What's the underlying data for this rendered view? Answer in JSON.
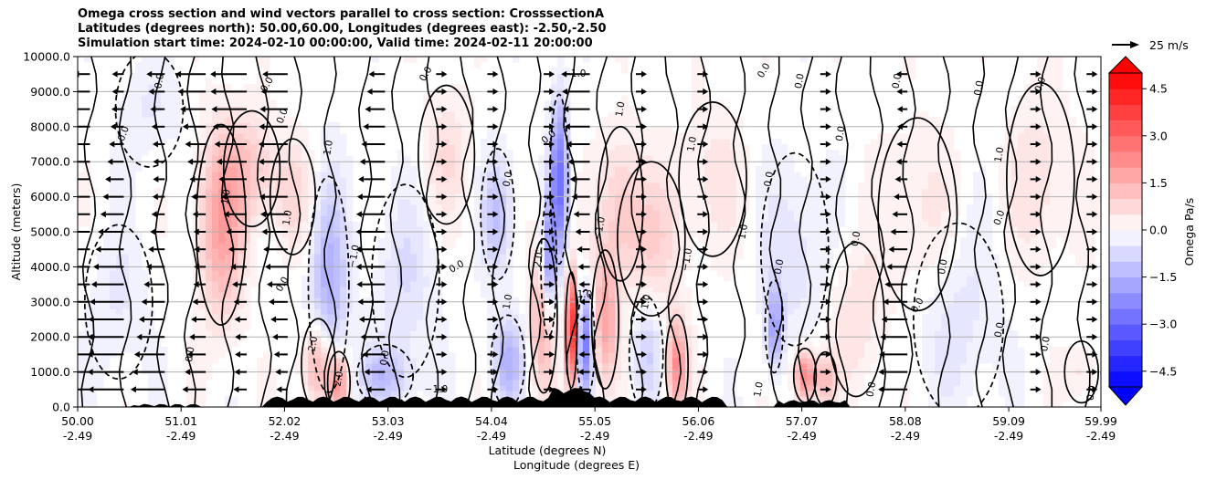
{
  "chart_data": {
    "type": "heatmap",
    "title_lines": [
      "Omega cross section and wind vectors parallel to cross section: CrosssectionA",
      "Latitudes (degrees north): 50.00,60.00, Longitudes (degrees east): -2.50,-2.50",
      "Simulation start time: 2024-02-10 00:00:00, Valid time: 2024-02-11 20:00:00"
    ],
    "xlabel_lines": [
      "Latitude (degrees N)",
      "Longitude (degrees E)"
    ],
    "ylabel": "Altitude (meters)",
    "colorbar_label": "Omega Pa/s",
    "quiver_key_label": "25 m/s",
    "xlim": [
      50.0,
      59.99
    ],
    "ylim": [
      0,
      10000
    ],
    "x_ticks": [
      {
        "lat": "50.00",
        "lon": "-2.49",
        "value": 50.0
      },
      {
        "lat": "51.01",
        "lon": "-2.49",
        "value": 51.01
      },
      {
        "lat": "52.02",
        "lon": "-2.49",
        "value": 52.02
      },
      {
        "lat": "53.03",
        "lon": "-2.49",
        "value": 53.03
      },
      {
        "lat": "54.04",
        "lon": "-2.49",
        "value": 54.04
      },
      {
        "lat": "55.05",
        "lon": "-2.49",
        "value": 55.05
      },
      {
        "lat": "56.06",
        "lon": "-2.49",
        "value": 56.06
      },
      {
        "lat": "57.07",
        "lon": "-2.49",
        "value": 57.07
      },
      {
        "lat": "58.08",
        "lon": "-2.49",
        "value": 58.08
      },
      {
        "lat": "59.09",
        "lon": "-2.49",
        "value": 59.09
      },
      {
        "lat": "59.99",
        "lon": "-2.49",
        "value": 59.99
      }
    ],
    "y_ticks": [
      {
        "label": "0.0",
        "value": 0
      },
      {
        "label": "1000.0",
        "value": 1000
      },
      {
        "label": "2000.0",
        "value": 2000
      },
      {
        "label": "3000.0",
        "value": 3000
      },
      {
        "label": "4000.0",
        "value": 4000
      },
      {
        "label": "5000.0",
        "value": 5000
      },
      {
        "label": "6000.0",
        "value": 6000
      },
      {
        "label": "7000.0",
        "value": 7000
      },
      {
        "label": "8000.0",
        "value": 8000
      },
      {
        "label": "9000.0",
        "value": 9000
      },
      {
        "label": "10000.0",
        "value": 10000
      }
    ],
    "colorbar_ticks": [
      {
        "label": "4.5",
        "value": 4.5
      },
      {
        "label": "3.0",
        "value": 3.0
      },
      {
        "label": "1.5",
        "value": 1.5
      },
      {
        "label": "0.0",
        "value": 0.0
      },
      {
        "label": "−1.5",
        "value": -1.5
      },
      {
        "label": "−3.0",
        "value": -3.0
      },
      {
        "label": "−4.5",
        "value": -4.5
      }
    ],
    "colorbar_range": [
      -5.0,
      5.0
    ],
    "colorbar_extend": "both",
    "omega_features": [
      {
        "lat": 51.4,
        "alt": 5200,
        "omega": 1.8,
        "wlat": 0.22,
        "walt": 2600
      },
      {
        "lat": 51.7,
        "alt": 6800,
        "omega": 1.0,
        "wlat": 0.25,
        "walt": 1500
      },
      {
        "lat": 52.1,
        "alt": 6000,
        "omega": 0.7,
        "wlat": 0.2,
        "walt": 1500
      },
      {
        "lat": 52.45,
        "alt": 3500,
        "omega": -1.5,
        "wlat": 0.18,
        "walt": 2800
      },
      {
        "lat": 52.35,
        "alt": 1200,
        "omega": 1.8,
        "wlat": 0.15,
        "walt": 1200
      },
      {
        "lat": 52.55,
        "alt": 700,
        "omega": 2.0,
        "wlat": 0.1,
        "walt": 800
      },
      {
        "lat": 53.0,
        "alt": 900,
        "omega": -1.2,
        "wlat": 0.25,
        "walt": 800
      },
      {
        "lat": 53.2,
        "alt": 3600,
        "omega": -0.6,
        "wlat": 0.3,
        "walt": 2500
      },
      {
        "lat": 53.6,
        "alt": 7200,
        "omega": 0.6,
        "wlat": 0.25,
        "walt": 1800
      },
      {
        "lat": 54.1,
        "alt": 5500,
        "omega": -1.2,
        "wlat": 0.15,
        "walt": 1700
      },
      {
        "lat": 54.2,
        "alt": 1300,
        "omega": -1.5,
        "wlat": 0.15,
        "walt": 1200
      },
      {
        "lat": 54.55,
        "alt": 2600,
        "omega": 1.8,
        "wlat": 0.12,
        "walt": 2000
      },
      {
        "lat": 54.7,
        "alt": 6500,
        "omega": -2.8,
        "wlat": 0.08,
        "walt": 2200
      },
      {
        "lat": 54.6,
        "alt": 4000,
        "omega": -2.4,
        "wlat": 0.07,
        "walt": 1800
      },
      {
        "lat": 54.82,
        "alt": 2200,
        "omega": 4.8,
        "wlat": 0.05,
        "walt": 1500
      },
      {
        "lat": 54.96,
        "alt": 1800,
        "omega": -2.5,
        "wlat": 0.08,
        "walt": 1400
      },
      {
        "lat": 55.15,
        "alt": 2500,
        "omega": 1.8,
        "wlat": 0.12,
        "walt": 1800
      },
      {
        "lat": 55.3,
        "alt": 5800,
        "omega": 0.9,
        "wlat": 0.2,
        "walt": 2000
      },
      {
        "lat": 55.55,
        "alt": 1500,
        "omega": -0.9,
        "wlat": 0.15,
        "walt": 1500
      },
      {
        "lat": 55.85,
        "alt": 1200,
        "omega": 2.2,
        "wlat": 0.1,
        "walt": 1300
      },
      {
        "lat": 55.6,
        "alt": 4800,
        "omega": 0.8,
        "wlat": 0.3,
        "walt": 2000
      },
      {
        "lat": 56.2,
        "alt": 6500,
        "omega": 0.5,
        "wlat": 0.3,
        "walt": 2000
      },
      {
        "lat": 56.8,
        "alt": 2300,
        "omega": -1.8,
        "wlat": 0.08,
        "walt": 1200
      },
      {
        "lat": 57.1,
        "alt": 900,
        "omega": 2.5,
        "wlat": 0.1,
        "walt": 700
      },
      {
        "lat": 57.3,
        "alt": 800,
        "omega": 1.2,
        "wlat": 0.1,
        "walt": 700
      },
      {
        "lat": 57.0,
        "alt": 4500,
        "omega": -0.6,
        "wlat": 0.3,
        "walt": 2500
      },
      {
        "lat": 57.6,
        "alt": 2500,
        "omega": 0.6,
        "wlat": 0.25,
        "walt": 2000
      },
      {
        "lat": 58.2,
        "alt": 5500,
        "omega": 0.5,
        "wlat": 0.35,
        "walt": 2500
      },
      {
        "lat": 58.6,
        "alt": 2500,
        "omega": -0.5,
        "wlat": 0.4,
        "walt": 2500
      },
      {
        "lat": 59.4,
        "alt": 6500,
        "omega": 0.6,
        "wlat": 0.3,
        "walt": 2500
      },
      {
        "lat": 59.8,
        "alt": 1000,
        "omega": 0.5,
        "wlat": 0.15,
        "walt": 800
      },
      {
        "lat": 50.7,
        "alt": 8500,
        "omega": -0.4,
        "wlat": 0.3,
        "walt": 1500
      },
      {
        "lat": 50.4,
        "alt": 3000,
        "omega": -0.4,
        "wlat": 0.3,
        "walt": 2000
      }
    ],
    "contour_labels": [
      {
        "text": "0.0",
        "lat": 50.45,
        "alt": 7800,
        "angle": -70
      },
      {
        "text": "0.0",
        "lat": 50.8,
        "alt": 9300,
        "angle": -80
      },
      {
        "text": "0.0",
        "lat": 51.1,
        "alt": 1500,
        "angle": -80
      },
      {
        "text": "1.0",
        "lat": 51.45,
        "alt": 6000,
        "angle": -80
      },
      {
        "text": "0.0",
        "lat": 51.85,
        "alt": 9200,
        "angle": -60
      },
      {
        "text": "0.0",
        "lat": 52.0,
        "alt": 8300,
        "angle": -70
      },
      {
        "text": "1.0",
        "lat": 52.05,
        "alt": 5400,
        "angle": -80
      },
      {
        "text": "2.0",
        "lat": 52.3,
        "alt": 1800,
        "angle": -80
      },
      {
        "text": "1.0",
        "lat": 52.45,
        "alt": 7400,
        "angle": -80
      },
      {
        "text": "0.0",
        "lat": 52.0,
        "alt": 3500,
        "angle": -60
      },
      {
        "text": "−1.0",
        "lat": 52.7,
        "alt": 4300,
        "angle": -80
      },
      {
        "text": "2.0",
        "lat": 52.55,
        "alt": 800,
        "angle": -80
      },
      {
        "text": "0.0",
        "lat": 53.0,
        "alt": 1400,
        "angle": -80
      },
      {
        "text": "0.0",
        "lat": 53.4,
        "alt": 9500,
        "angle": -60
      },
      {
        "text": "−1.0",
        "lat": 53.5,
        "alt": 500,
        "angle": 0
      },
      {
        "text": "0.0",
        "lat": 53.7,
        "alt": 4000,
        "angle": -30
      },
      {
        "text": "0.0",
        "lat": 54.2,
        "alt": 6500,
        "angle": -80
      },
      {
        "text": "1.0",
        "lat": 54.2,
        "alt": 3000,
        "angle": -80
      },
      {
        "text": "2.0",
        "lat": 54.5,
        "alt": 4200,
        "angle": -80
      },
      {
        "text": "0.0",
        "lat": 54.6,
        "alt": 7700,
        "angle": -40
      },
      {
        "text": "−1.0",
        "lat": 54.85,
        "alt": 9500,
        "angle": 0
      },
      {
        "text": "1.0",
        "lat": 54.95,
        "alt": 3200,
        "angle": 0
      },
      {
        "text": "1.0",
        "lat": 55.3,
        "alt": 8500,
        "angle": -80
      },
      {
        "text": "−1.0",
        "lat": 55.1,
        "alt": 5100,
        "angle": -80
      },
      {
        "text": "1.0",
        "lat": 55.55,
        "alt": 3000,
        "angle": -80
      },
      {
        "text": "−1.0",
        "lat": 55.95,
        "alt": 4200,
        "angle": -80
      },
      {
        "text": "1.0",
        "lat": 56.0,
        "alt": 7500,
        "angle": -80
      },
      {
        "text": "1.0",
        "lat": 56.5,
        "alt": 5000,
        "angle": -80
      },
      {
        "text": "0.0",
        "lat": 56.75,
        "alt": 6500,
        "angle": -80
      },
      {
        "text": "0.0",
        "lat": 56.7,
        "alt": 9600,
        "angle": -60
      },
      {
        "text": "0.0",
        "lat": 56.85,
        "alt": 4000,
        "angle": -80
      },
      {
        "text": "1.0",
        "lat": 56.65,
        "alt": 500,
        "angle": -80
      },
      {
        "text": "0.0",
        "lat": 57.05,
        "alt": 9300,
        "angle": -80
      },
      {
        "text": "0.0",
        "lat": 57.45,
        "alt": 7800,
        "angle": -80
      },
      {
        "text": "0.0",
        "lat": 57.6,
        "alt": 4800,
        "angle": -80
      },
      {
        "text": "0.0",
        "lat": 57.75,
        "alt": 500,
        "angle": -80
      },
      {
        "text": "0.0",
        "lat": 58.0,
        "alt": 9300,
        "angle": -80
      },
      {
        "text": "0.0",
        "lat": 58.45,
        "alt": 4000,
        "angle": -80
      },
      {
        "text": "0.0",
        "lat": 58.2,
        "alt": 2900,
        "angle": -60
      },
      {
        "text": "0.0",
        "lat": 58.8,
        "alt": 9100,
        "angle": -80
      },
      {
        "text": "0.0",
        "lat": 59.0,
        "alt": 5400,
        "angle": -70
      },
      {
        "text": "0.0",
        "lat": 59.0,
        "alt": 2200,
        "angle": -80
      },
      {
        "text": "0.0",
        "lat": 59.4,
        "alt": 9200,
        "angle": -70
      },
      {
        "text": "0.0",
        "lat": 59.45,
        "alt": 1800,
        "angle": -80
      },
      {
        "text": "1.0",
        "lat": 59.0,
        "alt": 7200,
        "angle": -80
      },
      {
        "text": "0.0",
        "lat": 59.9,
        "alt": 400,
        "angle": -80
      }
    ]
  },
  "colors": {
    "positive": "#ff0000",
    "negative": "#0000ff",
    "neutral": "#ffffff",
    "terrain": "#000000"
  }
}
